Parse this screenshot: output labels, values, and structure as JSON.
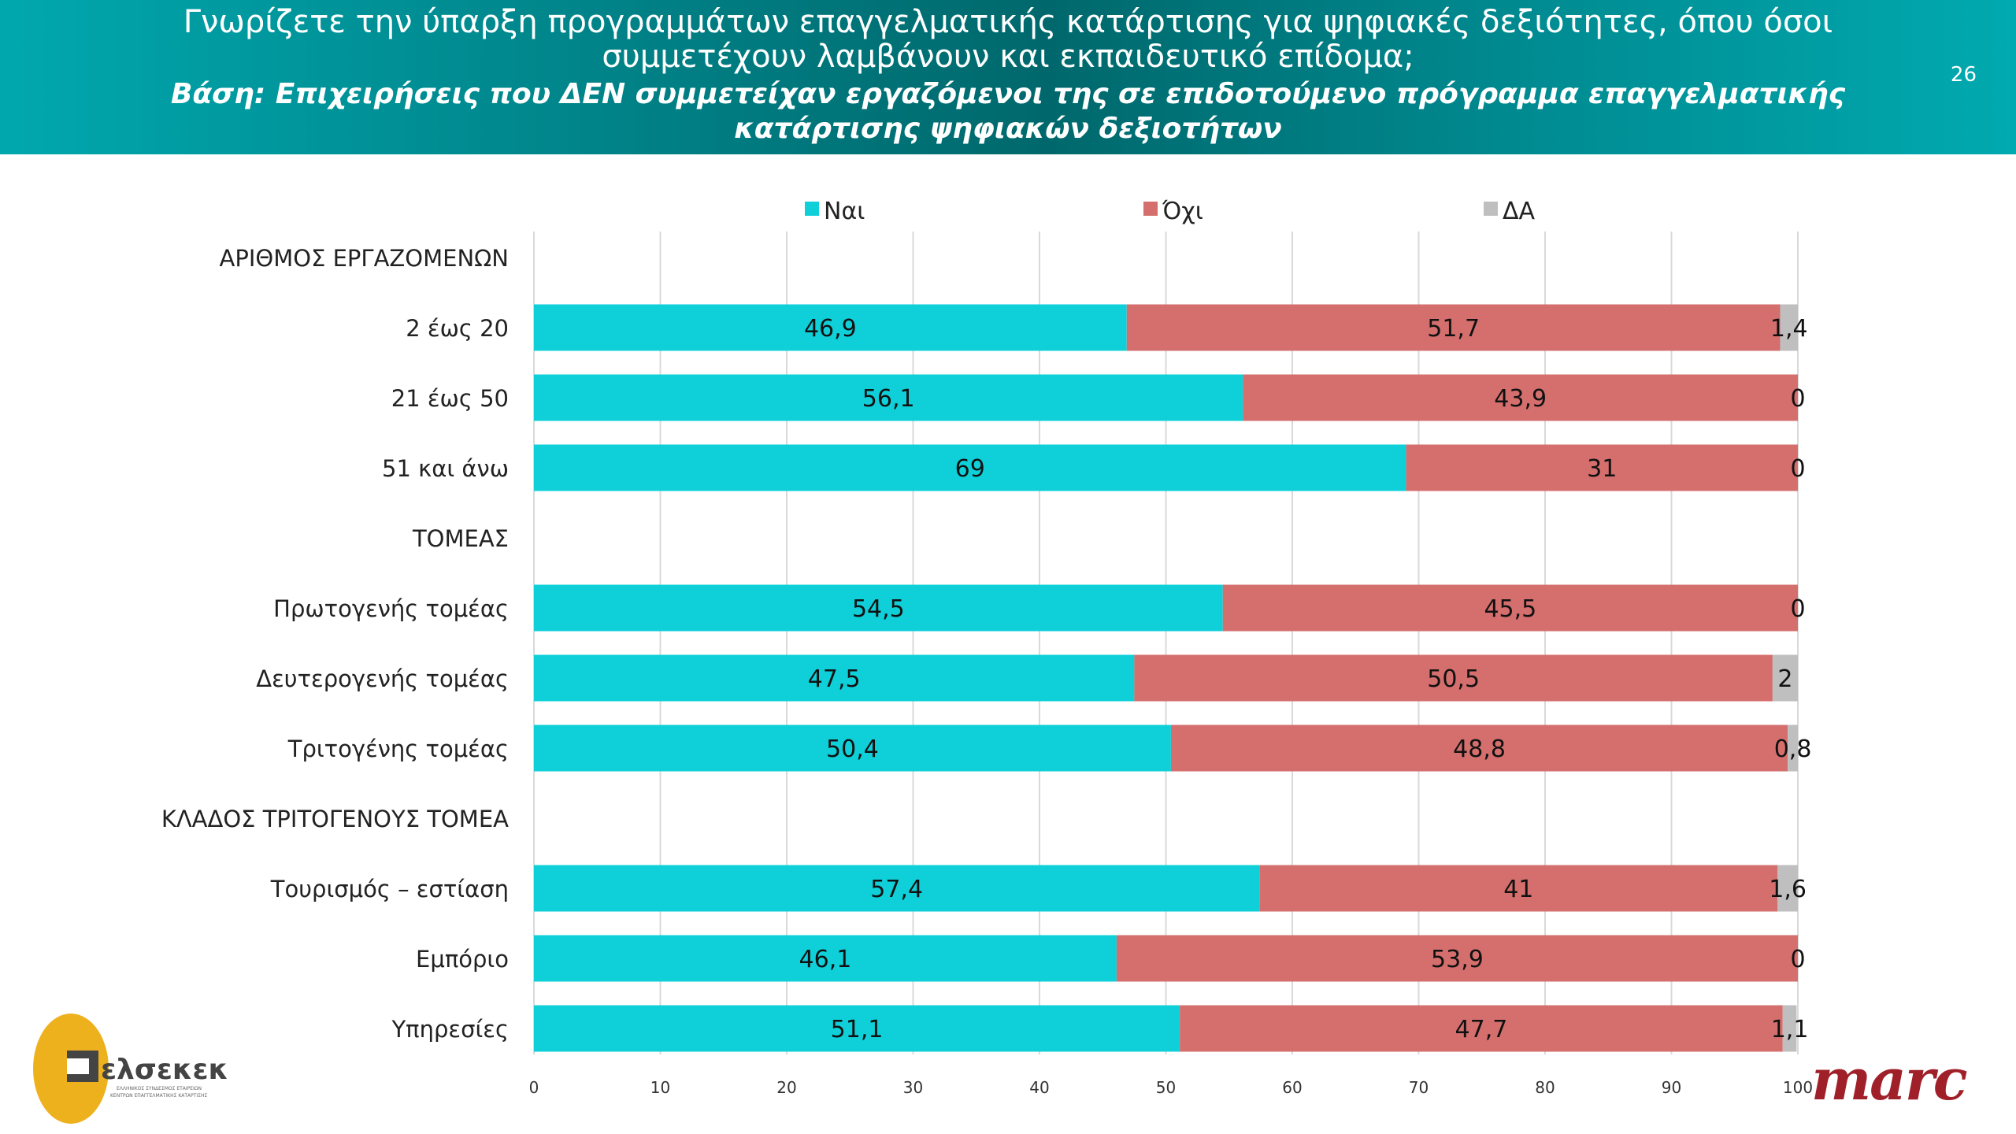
{
  "header": {
    "title": "Γνωρίζετε την ύπαρξη προγραμμάτων επαγγελματικής κατάρτισης για ψηφιακές δεξιότητες, όπου όσοι συμμετέχουν λαμβάνουν και εκπαιδευτικό επίδομα;",
    "subtitle": "Βάση: Επιχειρήσεις που ΔΕΝ συμμετείχαν εργαζόμενοι της σε επιδοτούμενο πρόγραμμα επαγγελματικής κατάρτισης ψηφιακών δεξιοτήτων",
    "page_number": "26"
  },
  "logos": {
    "left": "ελσεκεκ",
    "left_caption": "ΕΛΛΗΝΙΚΟΣ ΣΥΝΔΕΣΜΟΣ ΕΤΑΙΡΕΙΩΝ ΚΕΝΤΡΩΝ ΕΠΑΓΓΕΛΜΑΤΙΚΗΣ ΚΑΤΑΡΤΙΣΗΣ",
    "right": "marc"
  },
  "chart_data": {
    "type": "bar",
    "orientation": "horizontal",
    "stacked": true,
    "categories": [
      "ΑΡΙΘΜΟΣ ΕΡΓΑΖΟΜΕΝΩΝ",
      "2 έως 20",
      "21 έως 50",
      "51 και άνω",
      "ΤΟΜΕΑΣ",
      "Πρωτογενής τομέας",
      "Δευτερογενής τομέας",
      "Τριτογένης τομέας",
      "ΚΛΑΔΟΣ ΤΡΙΤΟΓΕΝΟΥΣ ΤΟΜΕΑ",
      "Τουρισμός – εστίαση",
      "Εμπόριο",
      "Υπηρεσίες"
    ],
    "series": [
      {
        "name": "Ναι",
        "color": "#0fd0d9",
        "values": [
          null,
          46.9,
          56.1,
          69,
          null,
          54.5,
          47.5,
          50.4,
          null,
          57.4,
          46.1,
          51.1
        ],
        "labels": [
          "",
          "46,9",
          "56,1",
          "69",
          "",
          "54,5",
          "47,5",
          "50,4",
          "",
          "57,4",
          "46,1",
          "51,1"
        ]
      },
      {
        "name": "Όχι",
        "color": "#d46f6d",
        "values": [
          null,
          51.7,
          43.9,
          31,
          null,
          45.5,
          50.5,
          48.8,
          null,
          41,
          53.9,
          47.7
        ],
        "labels": [
          "",
          "51,7",
          "43,9",
          "31",
          "",
          "45,5",
          "50,5",
          "48,8",
          "",
          "41",
          "53,9",
          "47,7"
        ]
      },
      {
        "name": "ΔΑ",
        "color": "#bfbfbf",
        "values": [
          null,
          1.4,
          0,
          0,
          null,
          0,
          2,
          0.8,
          null,
          1.6,
          0,
          1.1
        ],
        "labels": [
          "",
          "1,4",
          "0",
          "0",
          "",
          "0",
          "2",
          "0,8",
          "",
          "1,6",
          "0",
          "1,1"
        ]
      }
    ],
    "xlim": [
      0,
      100
    ],
    "xticks": [
      "0",
      "10",
      "20",
      "30",
      "40",
      "50",
      "60",
      "70",
      "80",
      "90",
      "100"
    ],
    "grid": true,
    "legend": "top"
  }
}
